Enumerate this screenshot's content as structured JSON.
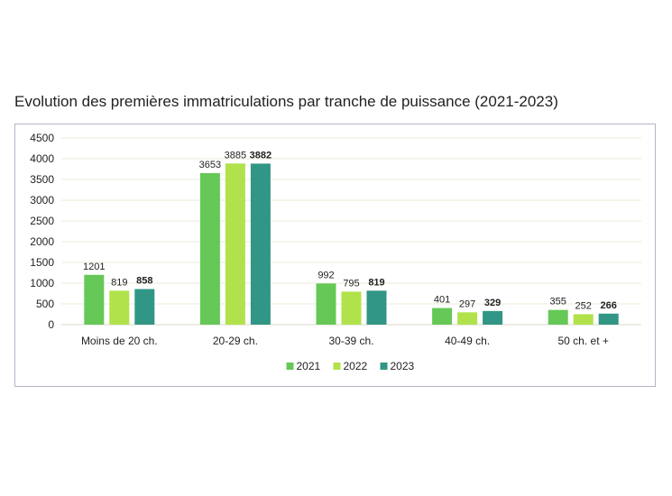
{
  "chart_data": {
    "type": "bar",
    "title": "Evolution des premières immatriculations par tranche de puissance (2021-2023)",
    "categories": [
      "Moins de 20 ch.",
      "20-29 ch.",
      "30-39 ch.",
      "40-49 ch.",
      "50 ch. et +"
    ],
    "series": [
      {
        "name": "2021",
        "values": [
          1201,
          3653,
          992,
          401,
          355
        ],
        "color": "#66c857",
        "bold_labels": false
      },
      {
        "name": "2022",
        "values": [
          819,
          3885,
          795,
          297,
          252
        ],
        "color": "#b1e24b",
        "bold_labels": false
      },
      {
        "name": "2023",
        "values": [
          858,
          3882,
          819,
          329,
          266
        ],
        "color": "#319685",
        "bold_labels": true
      }
    ],
    "ylim": [
      0,
      4500
    ],
    "yticks": [
      "0",
      "500",
      "1000",
      "1500",
      "2000",
      "2500",
      "3000",
      "3500",
      "4000",
      "4500"
    ],
    "grid": true,
    "gridline_color": "#ebebd9",
    "legend_position": "bottom-center"
  }
}
